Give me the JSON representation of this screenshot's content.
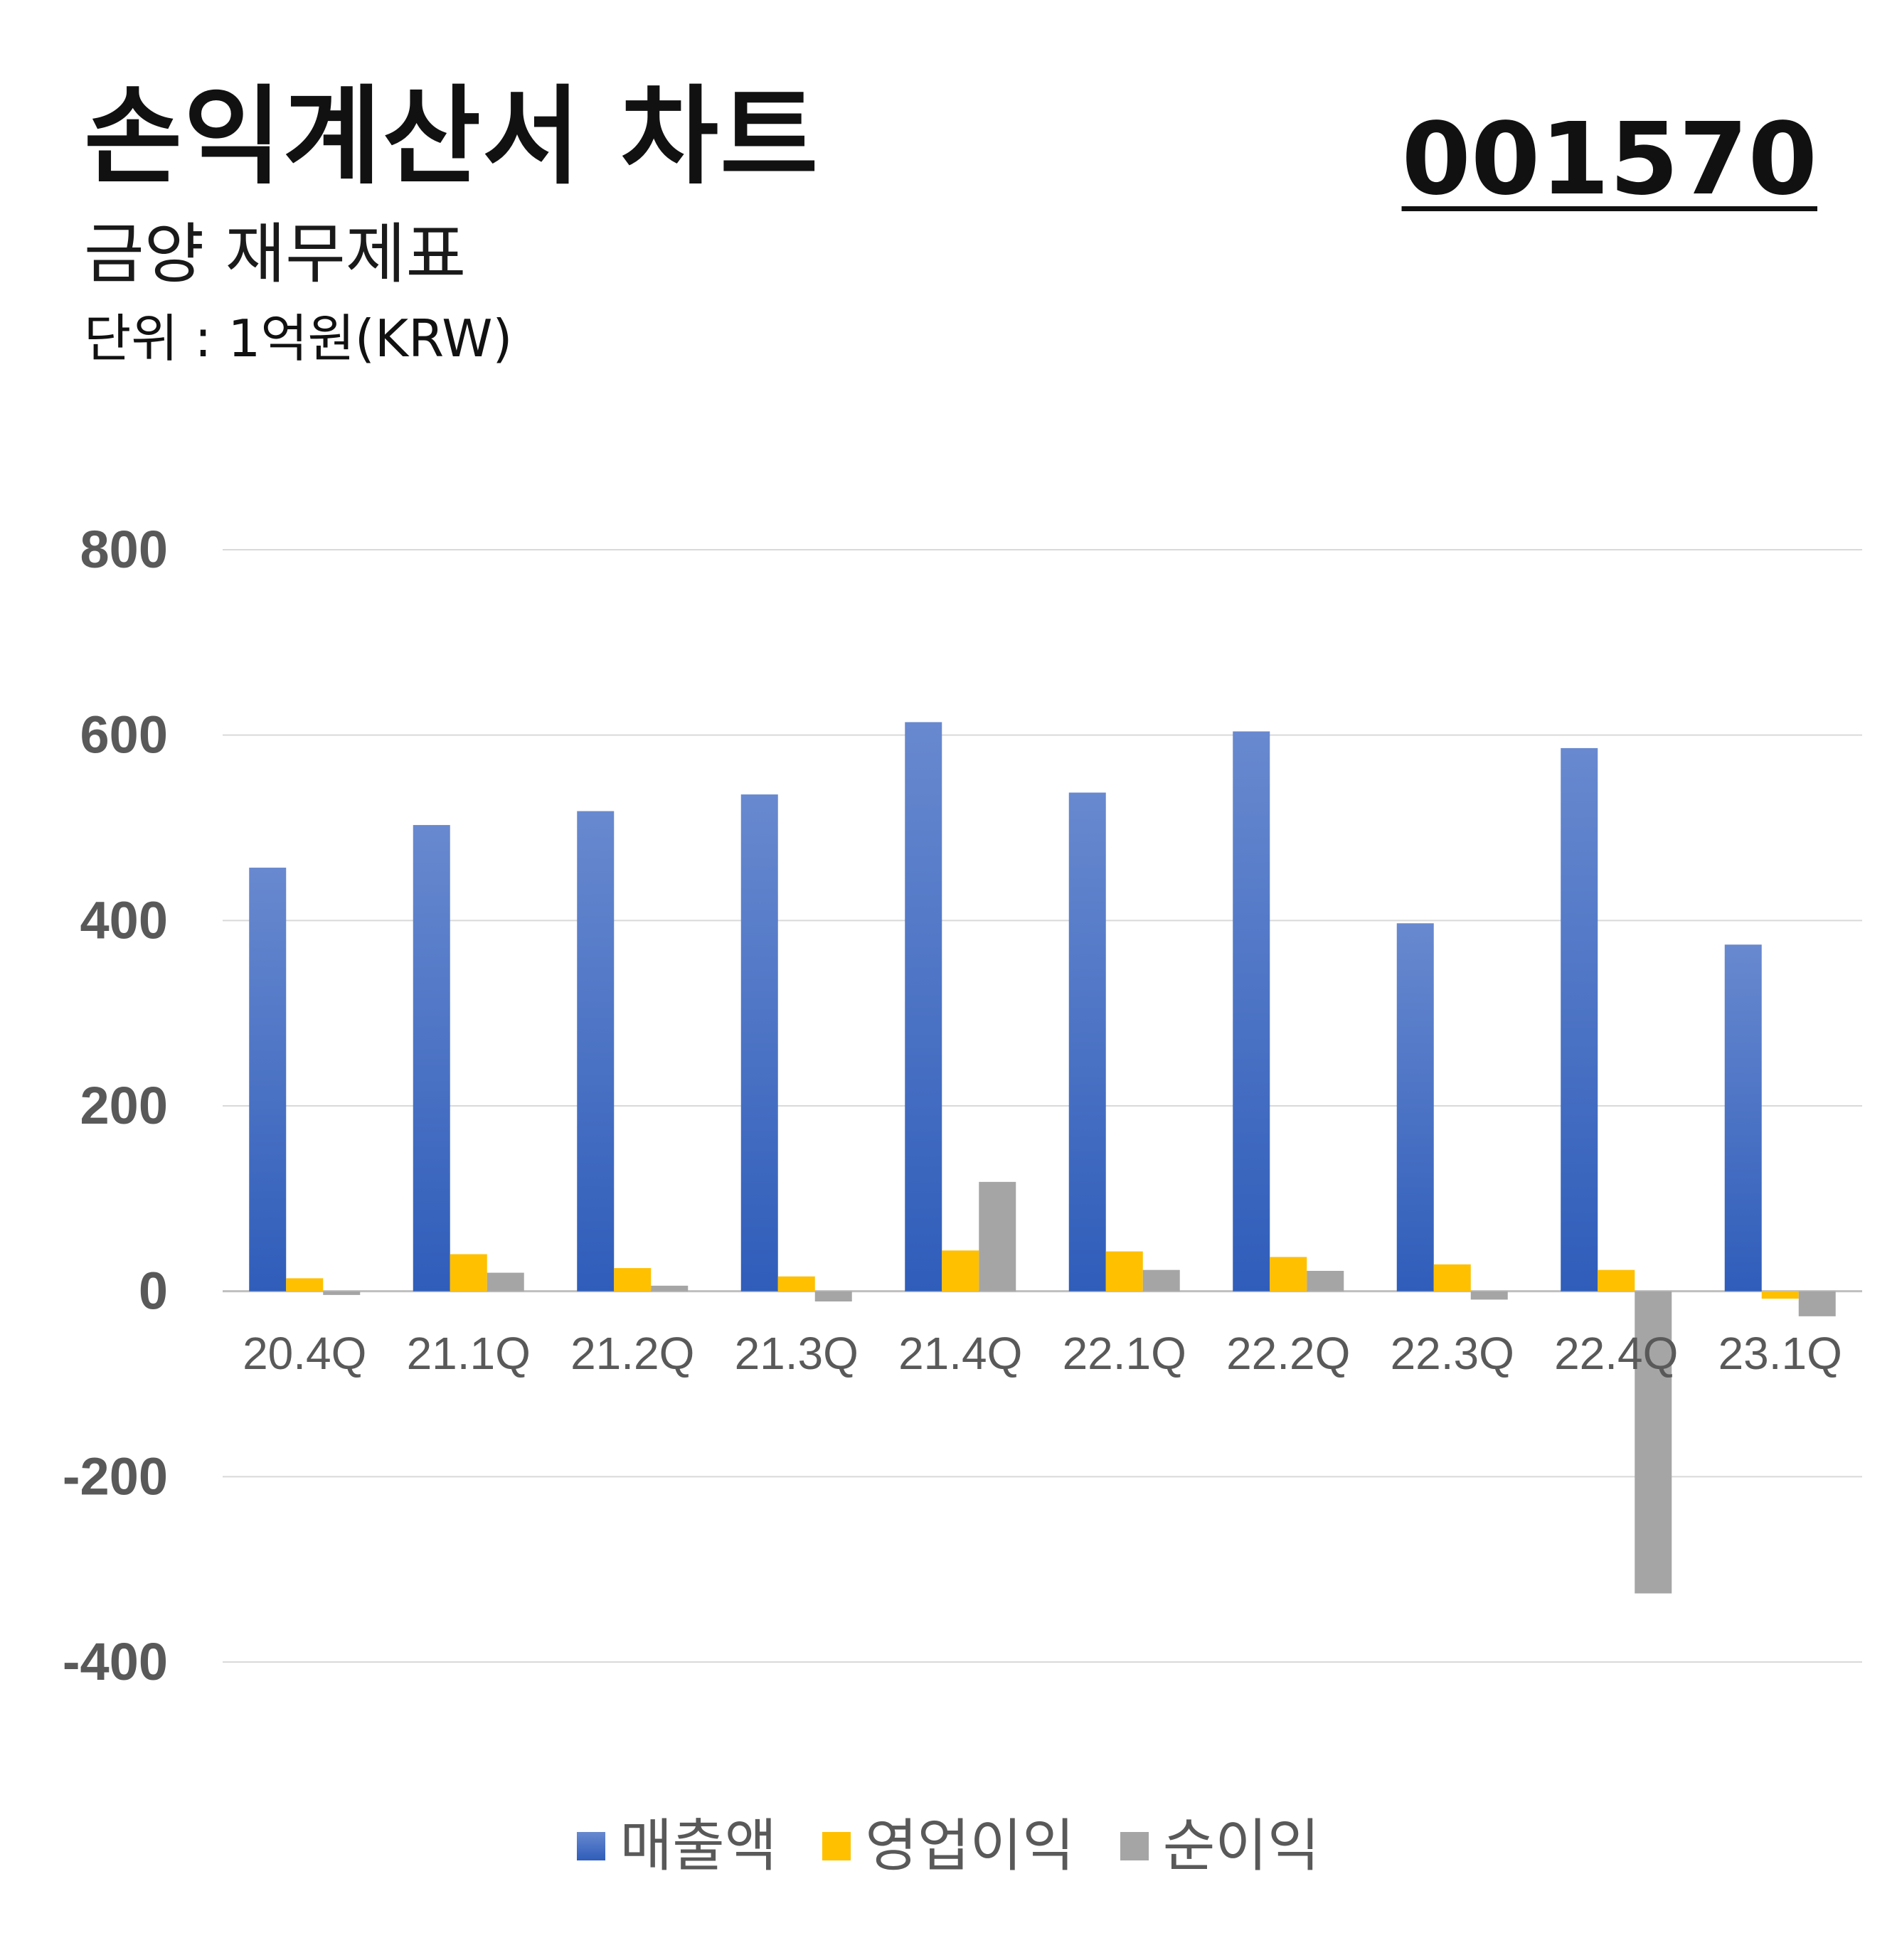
{
  "header": {
    "title": "손익계산서 차트",
    "subtitle": "금양 재무제표",
    "unit": "단위 : 1억원(KRW)",
    "code": "001570"
  },
  "chart_data": {
    "type": "bar",
    "categories": [
      "20.4Q",
      "21.1Q",
      "21.2Q",
      "21.3Q",
      "21.4Q",
      "22.1Q",
      "22.2Q",
      "22.3Q",
      "22.4Q",
      "23.1Q"
    ],
    "series": [
      {
        "name": "매출액",
        "color": "#3B6CC6",
        "values": [
          457,
          503,
          518,
          536,
          614,
          538,
          604,
          397,
          586,
          374
        ]
      },
      {
        "name": "영업이익",
        "color": "#FFC000",
        "values": [
          14,
          40,
          25,
          16,
          44,
          43,
          37,
          29,
          23,
          -8
        ]
      },
      {
        "name": "순이익",
        "color": "#A5A5A5",
        "values": [
          -4,
          20,
          6,
          -11,
          118,
          23,
          22,
          -9,
          -326,
          -27
        ]
      }
    ],
    "yticks": [
      "800",
      "600",
      "400",
      "200",
      "0",
      "-200",
      "-400"
    ],
    "ylim": [
      -400,
      800
    ],
    "grid": true,
    "legend_position": "bottom"
  }
}
